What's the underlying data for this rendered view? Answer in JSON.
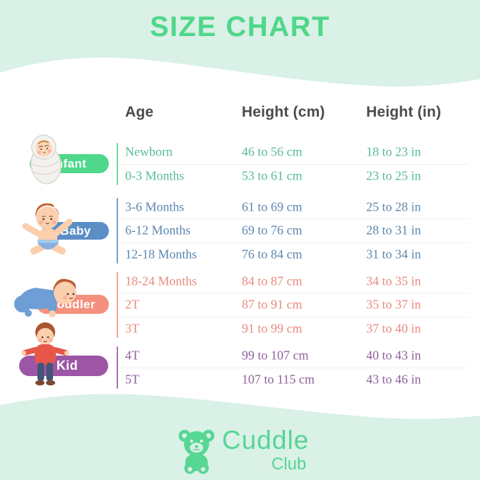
{
  "title": "SIZE CHART",
  "table": {
    "headers": [
      "Age",
      "Height (cm)",
      "Height (in)"
    ],
    "groups": [
      {
        "label": "Infant",
        "color": "#4fd88b",
        "text_color": "#55bd92",
        "icon": "swaddled-baby-icon",
        "rows": [
          [
            "Newborn",
            "46 to 56 cm",
            "18 to 23 in"
          ],
          [
            "0-3 Months",
            "53 to 61 cm",
            "23 to 25 in"
          ]
        ]
      },
      {
        "label": "Baby",
        "color": "#5c8ec6",
        "text_color": "#5b87b0",
        "icon": "sitting-baby-icon",
        "rows": [
          [
            "3-6 Months",
            "61 to 69 cm",
            "25 to 28 in"
          ],
          [
            "6-12 Months",
            "69 to 76 cm",
            "28 to 31 in"
          ],
          [
            "12-18 Months",
            "76 to 84 cm",
            "31 to 34 in"
          ]
        ]
      },
      {
        "label": "Toddler",
        "color": "#f5907f",
        "text_color": "#e98a7c",
        "icon": "crawling-toddler-icon",
        "rows": [
          [
            "18-24 Months",
            "84 to 87 cm",
            "34 to 35 in"
          ],
          [
            "2T",
            "87 to 91 cm",
            "35 to 37 in"
          ],
          [
            "3T",
            "91 to 99 cm",
            "37 to 40 in"
          ]
        ]
      },
      {
        "label": "Kid",
        "color": "#9d56a5",
        "text_color": "#8f5f9b",
        "icon": "standing-boy-icon",
        "rows": [
          [
            "4T",
            "99 to 107 cm",
            "40 to 43 in"
          ],
          [
            "5T",
            "107 to 115 cm",
            "43 to 46 in"
          ]
        ]
      }
    ]
  },
  "logo": {
    "brand": "Cuddle",
    "sub": "Club",
    "icon": "teddy-bear-icon",
    "color": "#58d496"
  },
  "colors": {
    "background_mint": "#d9f1e6",
    "title_green": "#4fd78a",
    "header_text": "#4a4a4a",
    "row_divider": "#edf0ef"
  },
  "chart_data": {
    "type": "table",
    "title": "SIZE CHART",
    "columns": [
      "Age",
      "Height (cm)",
      "Height (in)"
    ],
    "row_groups": [
      {
        "group": "Infant",
        "rows": [
          {
            "age": "Newborn",
            "height_cm": "46 to 56 cm",
            "height_in": "18 to 23 in"
          },
          {
            "age": "0-3 Months",
            "height_cm": "53 to 61 cm",
            "height_in": "23 to 25 in"
          }
        ]
      },
      {
        "group": "Baby",
        "rows": [
          {
            "age": "3-6 Months",
            "height_cm": "61 to 69 cm",
            "height_in": "25 to 28 in"
          },
          {
            "age": "6-12 Months",
            "height_cm": "69 to 76 cm",
            "height_in": "28 to 31 in"
          },
          {
            "age": "12-18 Months",
            "height_cm": "76 to 84 cm",
            "height_in": "31 to 34 in"
          }
        ]
      },
      {
        "group": "Toddler",
        "rows": [
          {
            "age": "18-24 Months",
            "height_cm": "84 to 87 cm",
            "height_in": "34 to 35 in"
          },
          {
            "age": "2T",
            "height_cm": "87 to 91 cm",
            "height_in": "35 to 37 in"
          },
          {
            "age": "3T",
            "height_cm": "91 to 99 cm",
            "height_in": "37 to 40 in"
          }
        ]
      },
      {
        "group": "Kid",
        "rows": [
          {
            "age": "4T",
            "height_cm": "99 to 107 cm",
            "height_in": "40 to 43 in"
          },
          {
            "age": "5T",
            "height_cm": "107 to 115 cm",
            "height_in": "43 to 46 in"
          }
        ]
      }
    ]
  }
}
